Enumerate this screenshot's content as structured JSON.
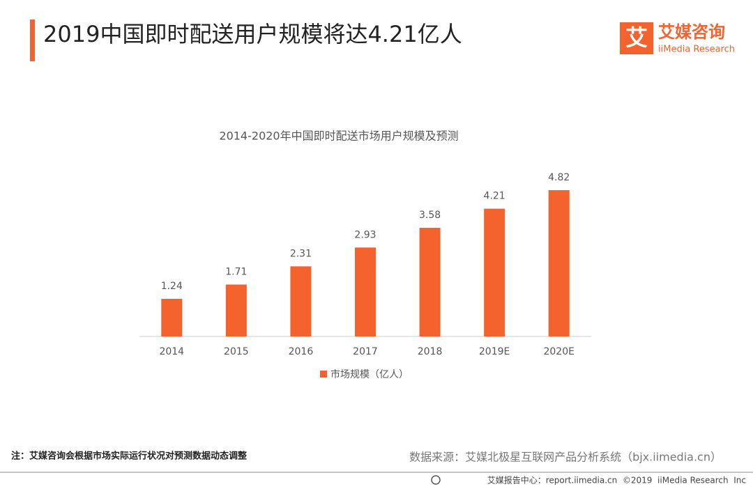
{
  "header": {
    "title": "2019中国即时配送用户规模将达4.21亿人",
    "logo_mark": "艾",
    "logo_name": "艾媒咨询",
    "logo_sub": "iiMedia Research"
  },
  "chart_data": {
    "type": "bar",
    "title": "2014-2020年中国即时配送市场用户规模及预测",
    "categories": [
      "2014",
      "2015",
      "2016",
      "2017",
      "2018",
      "2019E",
      "2020E"
    ],
    "series": [
      {
        "name": "市场规模（亿人）",
        "color": "#f4622d",
        "values": [
          1.24,
          1.71,
          2.31,
          2.93,
          3.58,
          4.21,
          4.82
        ]
      }
    ]
  },
  "note": "注：艾媒咨询会根据市场实际运行状况对预测数据动态调整",
  "source": "数据来源：艾媒北极星互联网产品分析系统（bjx.iimedia.cn）",
  "footer": "艾媒报告中心：report.iimedia.cn  ©2019  iiMedia Research  Inc"
}
